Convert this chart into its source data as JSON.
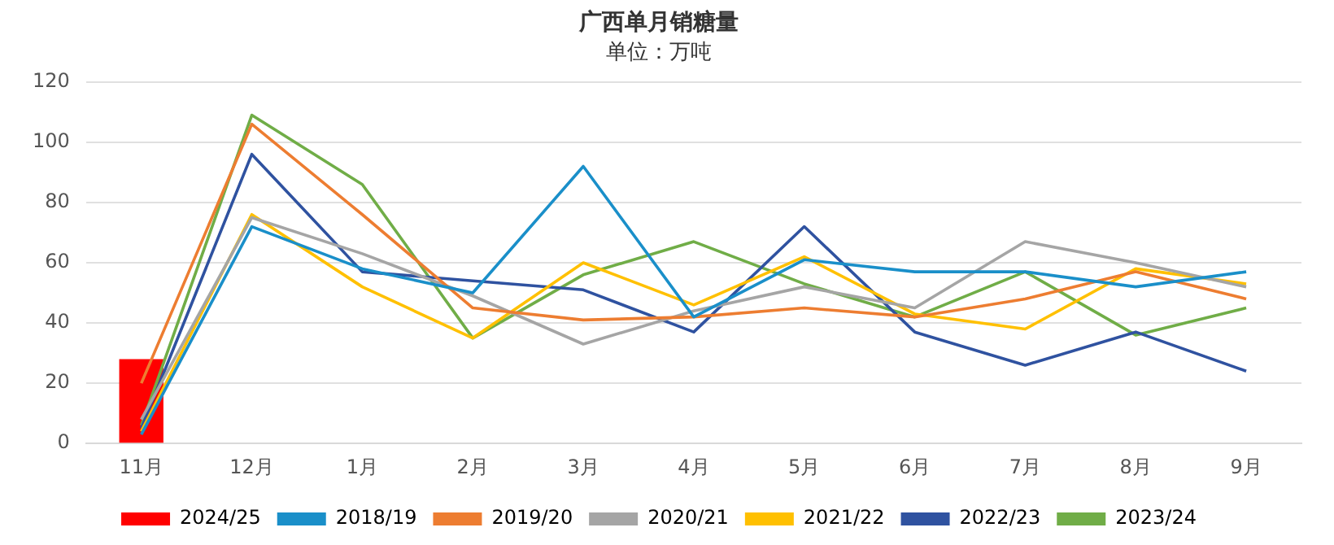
{
  "chart_data": {
    "type": "line",
    "title": "广西单月销糖量",
    "subtitle": "单位：万吨",
    "categories": [
      "11月",
      "12月",
      "1月",
      "2月",
      "3月",
      "4月",
      "5月",
      "6月",
      "7月",
      "8月",
      "9月"
    ],
    "series": [
      {
        "name": "2024/25",
        "type": "bar",
        "color": "#ff0000",
        "values": [
          28,
          null,
          null,
          null,
          null,
          null,
          null,
          null,
          null,
          null,
          null
        ]
      },
      {
        "name": "2018/19",
        "color": "#1a8fc9",
        "values": [
          3,
          72,
          58,
          50,
          92,
          42,
          61,
          57,
          57,
          52,
          57
        ]
      },
      {
        "name": "2019/20",
        "color": "#ed7d31",
        "values": [
          20,
          106,
          76,
          45,
          41,
          42,
          45,
          42,
          48,
          57,
          48
        ]
      },
      {
        "name": "2020/21",
        "color": "#a5a5a5",
        "values": [
          8,
          75,
          63,
          49,
          33,
          44,
          52,
          45,
          67,
          60,
          52
        ]
      },
      {
        "name": "2021/22",
        "color": "#ffc000",
        "values": [
          4,
          76,
          52,
          35,
          60,
          46,
          62,
          43,
          38,
          58,
          53
        ]
      },
      {
        "name": "2022/23",
        "color": "#2f52a0",
        "values": [
          5,
          96,
          57,
          54,
          51,
          37,
          72,
          37,
          26,
          37,
          24
        ]
      },
      {
        "name": "2023/24",
        "color": "#70ad47",
        "values": [
          6,
          109,
          86,
          35,
          56,
          67,
          53,
          42,
          57,
          36,
          45
        ]
      }
    ],
    "ylim": [
      0,
      120
    ],
    "yticks": [
      0,
      20,
      40,
      60,
      80,
      100,
      120
    ],
    "grid": "y",
    "legend": "bottom",
    "marker": "none",
    "line_style": "solid"
  }
}
